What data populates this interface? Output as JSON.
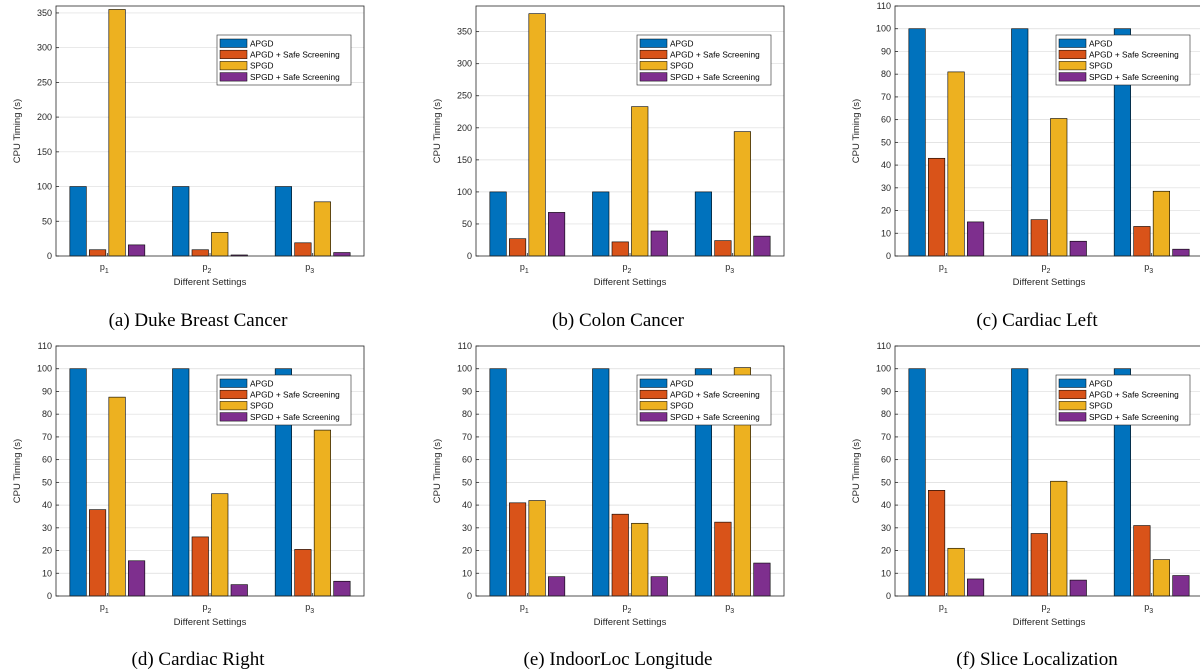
{
  "colors": {
    "APGD": "#0072BD",
    "APGD_safe": "#D95319",
    "SPGD": "#EDB120",
    "SPGD_safe": "#7E2F8E"
  },
  "chart_data": [
    {
      "type": "bar",
      "caption": "(a) Duke Breast Cancer",
      "categories": [
        "p",
        "p",
        "p"
      ],
      "category_subscripts": [
        "1",
        "2",
        "3"
      ],
      "xlabel": "Different Settings",
      "ylabel": "CPU Timing (s)",
      "ylim": [
        0,
        360
      ],
      "yticks": [
        0,
        50,
        100,
        150,
        200,
        250,
        300,
        350
      ],
      "grid": true,
      "legend_position": "upper-right",
      "series": [
        {
          "name": "APGD",
          "values": [
            100,
            100,
            100
          ]
        },
        {
          "name": "APGD + Safe Screening",
          "values": [
            9,
            9,
            19
          ]
        },
        {
          "name": "SPGD",
          "values": [
            355,
            34,
            78
          ]
        },
        {
          "name": "SPGD + Safe Screening",
          "values": [
            16,
            1.5,
            5
          ]
        }
      ]
    },
    {
      "type": "bar",
      "caption": "(b) Colon Cancer",
      "categories": [
        "p",
        "p",
        "p"
      ],
      "category_subscripts": [
        "1",
        "2",
        "3"
      ],
      "xlabel": "Different Settings",
      "ylabel": "CPU Timing (s)",
      "ylim": [
        0,
        390
      ],
      "yticks": [
        0,
        50,
        100,
        150,
        200,
        250,
        300,
        350
      ],
      "grid": true,
      "legend_position": "upper-right",
      "series": [
        {
          "name": "APGD",
          "values": [
            100,
            100,
            100
          ]
        },
        {
          "name": "APGD + Safe Screening",
          "values": [
            27,
            22,
            24
          ]
        },
        {
          "name": "SPGD",
          "values": [
            378,
            233,
            194
          ]
        },
        {
          "name": "SPGD + Safe Screening",
          "values": [
            68,
            39,
            31
          ]
        }
      ]
    },
    {
      "type": "bar",
      "caption": "(c) Cardiac Left",
      "categories": [
        "p",
        "p",
        "p"
      ],
      "category_subscripts": [
        "1",
        "2",
        "3"
      ],
      "xlabel": "Different Settings",
      "ylabel": "CPU Timing (s)",
      "ylim": [
        0,
        110
      ],
      "yticks": [
        0,
        10,
        20,
        30,
        40,
        50,
        60,
        70,
        80,
        90,
        100,
        110
      ],
      "grid": true,
      "legend_position": "upper-right",
      "series": [
        {
          "name": "APGD",
          "values": [
            100,
            100,
            100
          ]
        },
        {
          "name": "APGD + Safe Screening",
          "values": [
            43,
            16,
            13
          ]
        },
        {
          "name": "SPGD",
          "values": [
            81,
            60.5,
            28.5
          ]
        },
        {
          "name": "SPGD + Safe Screening",
          "values": [
            15,
            6.5,
            3
          ]
        }
      ]
    },
    {
      "type": "bar",
      "caption": "(d) Cardiac Right",
      "categories": [
        "p",
        "p",
        "p"
      ],
      "category_subscripts": [
        "1",
        "2",
        "3"
      ],
      "xlabel": "Different Settings",
      "ylabel": "CPU Timing (s)",
      "ylim": [
        0,
        110
      ],
      "yticks": [
        0,
        10,
        20,
        30,
        40,
        50,
        60,
        70,
        80,
        90,
        100,
        110
      ],
      "grid": true,
      "legend_position": "upper-right",
      "series": [
        {
          "name": "APGD",
          "values": [
            100,
            100,
            100
          ]
        },
        {
          "name": "APGD + Safe Screening",
          "values": [
            38,
            26,
            20.5
          ]
        },
        {
          "name": "SPGD",
          "values": [
            87.5,
            45,
            73
          ]
        },
        {
          "name": "SPGD + Safe Screening",
          "values": [
            15.5,
            5,
            6.5
          ]
        }
      ]
    },
    {
      "type": "bar",
      "caption": "(e) IndoorLoc Longitude",
      "categories": [
        "p",
        "p",
        "p"
      ],
      "category_subscripts": [
        "1",
        "2",
        "3"
      ],
      "xlabel": "Different Settings",
      "ylabel": "CPU Timing (s)",
      "ylim": [
        0,
        110
      ],
      "yticks": [
        0,
        10,
        20,
        30,
        40,
        50,
        60,
        70,
        80,
        90,
        100,
        110
      ],
      "grid": true,
      "legend_position": "upper-right",
      "series": [
        {
          "name": "APGD",
          "values": [
            100,
            100,
            100
          ]
        },
        {
          "name": "APGD + Safe Screening",
          "values": [
            41,
            36,
            32.5
          ]
        },
        {
          "name": "SPGD",
          "values": [
            42,
            32,
            100.5
          ]
        },
        {
          "name": "SPGD + Safe Screening",
          "values": [
            8.5,
            8.5,
            14.5
          ]
        }
      ]
    },
    {
      "type": "bar",
      "caption": "(f) Slice Localization",
      "categories": [
        "p",
        "p",
        "p"
      ],
      "category_subscripts": [
        "1",
        "2",
        "3"
      ],
      "xlabel": "Different Settings",
      "ylabel": "CPU Timing (s)",
      "ylim": [
        0,
        110
      ],
      "yticks": [
        0,
        10,
        20,
        30,
        40,
        50,
        60,
        70,
        80,
        90,
        100,
        110
      ],
      "grid": true,
      "legend_position": "upper-right",
      "series": [
        {
          "name": "APGD",
          "values": [
            100,
            100,
            100
          ]
        },
        {
          "name": "APGD + Safe Screening",
          "values": [
            46.5,
            27.5,
            31
          ]
        },
        {
          "name": "SPGD",
          "values": [
            21,
            50.5,
            16
          ]
        },
        {
          "name": "SPGD + Safe Screening",
          "values": [
            7.5,
            7,
            9
          ]
        }
      ]
    }
  ]
}
